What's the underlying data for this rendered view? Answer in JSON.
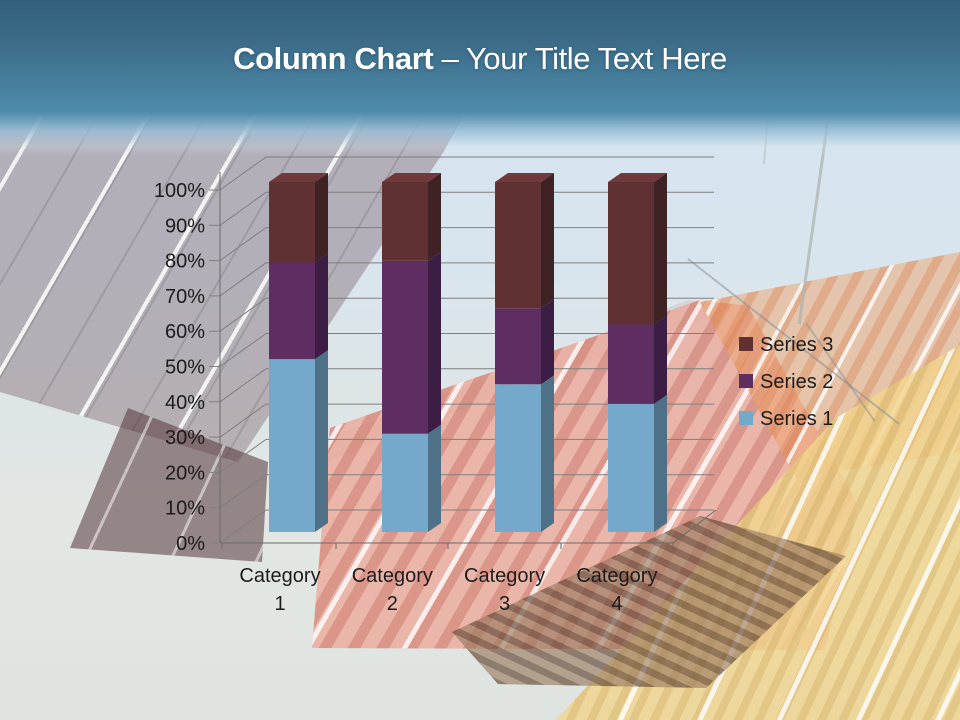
{
  "slide_title": {
    "bold": "Column Chart",
    "regular": " – Your Title Text Here"
  },
  "chart_data": {
    "type": "bar",
    "variant": "3d-100-percent-stacked-column",
    "categories": [
      "Category 1",
      "Category 2",
      "Category 3",
      "Category 4"
    ],
    "series": [
      {
        "name": "Series 1",
        "color": "#74A9CC",
        "side_color": "#4E7187",
        "top_color": "#8FBCD8",
        "percents": [
          49.4,
          28.1,
          42.2,
          36.6
        ]
      },
      {
        "name": "Series 2",
        "color": "#5E2E62",
        "side_color": "#3C1E44",
        "top_color": "#76407C",
        "percents": [
          27.6,
          49.4,
          21.7,
          22.7
        ]
      },
      {
        "name": "Series 3",
        "color": "#5F3132",
        "side_color": "#3E2224",
        "top_color": "#703A3C",
        "percents": [
          23.0,
          22.5,
          36.1,
          40.7
        ]
      }
    ],
    "y_axis": {
      "min": 0,
      "max": 100,
      "tick_labels": [
        "0%",
        "10%",
        "20%",
        "30%",
        "40%",
        "50%",
        "60%",
        "70%",
        "80%",
        "90%",
        "100%"
      ]
    },
    "legend": {
      "position": "right",
      "entries": [
        "Series 3",
        "Series 2",
        "Series 1"
      ]
    },
    "grid": true,
    "grid_color": "#7f7f7f",
    "axis_color": "#6b6b6b",
    "text_color": "#1c1c1c"
  }
}
